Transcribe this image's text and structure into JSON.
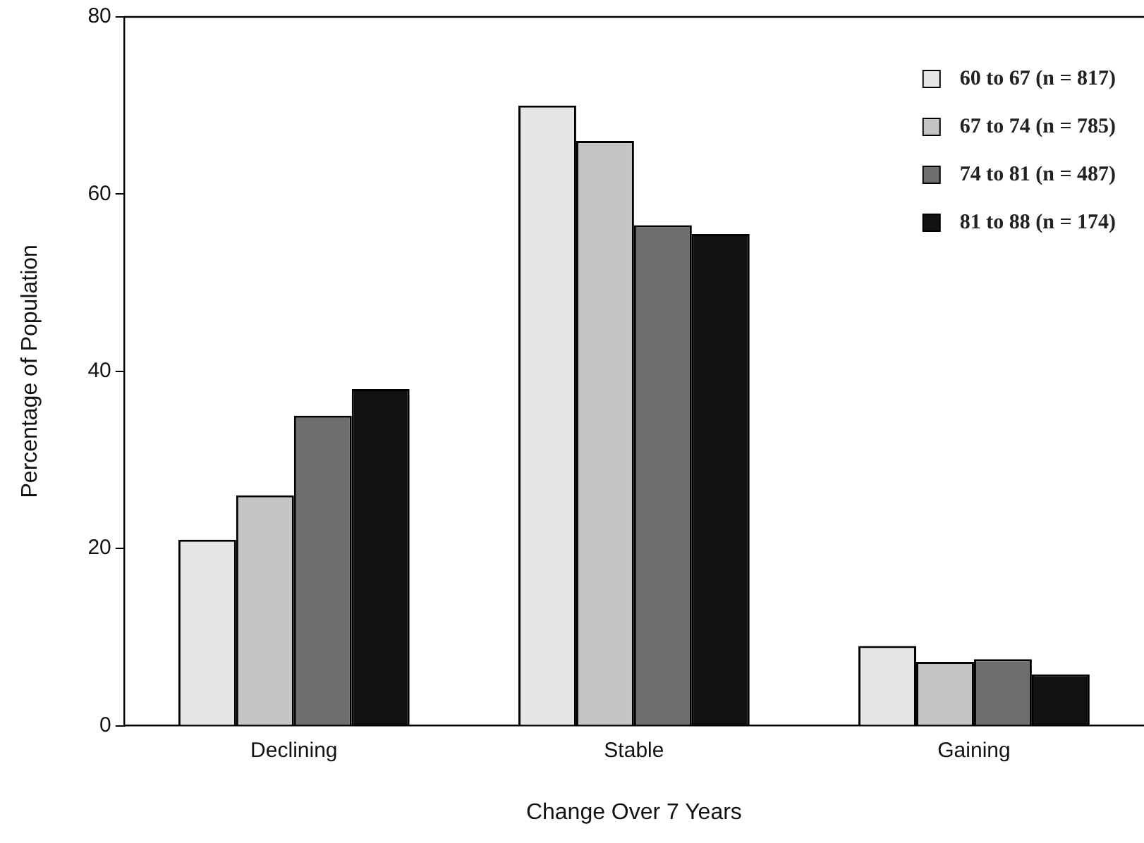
{
  "chart_data": {
    "type": "bar",
    "xlabel": "Change Over 7 Years",
    "ylabel": "Percentage of Population",
    "categories": [
      "Declining",
      "Stable",
      "Gaining"
    ],
    "series": [
      {
        "name": "60 to 67 (n = 817)",
        "color": "#e6e6e6",
        "values": [
          21,
          70,
          9
        ]
      },
      {
        "name": "67 to 74 (n = 785)",
        "color": "#c4c4c4",
        "values": [
          26,
          66,
          7.2
        ]
      },
      {
        "name": "74 to 81 (n = 487)",
        "color": "#6e6e6e",
        "values": [
          35,
          56.5,
          7.5
        ]
      },
      {
        "name": "81 to 88 (n = 174)",
        "color": "#111111",
        "values": [
          38,
          55.5,
          5.8
        ]
      }
    ],
    "ylim": [
      0,
      80
    ],
    "yticks": [
      0,
      20,
      40,
      60,
      80
    ],
    "grid": false,
    "legend": "top right"
  }
}
